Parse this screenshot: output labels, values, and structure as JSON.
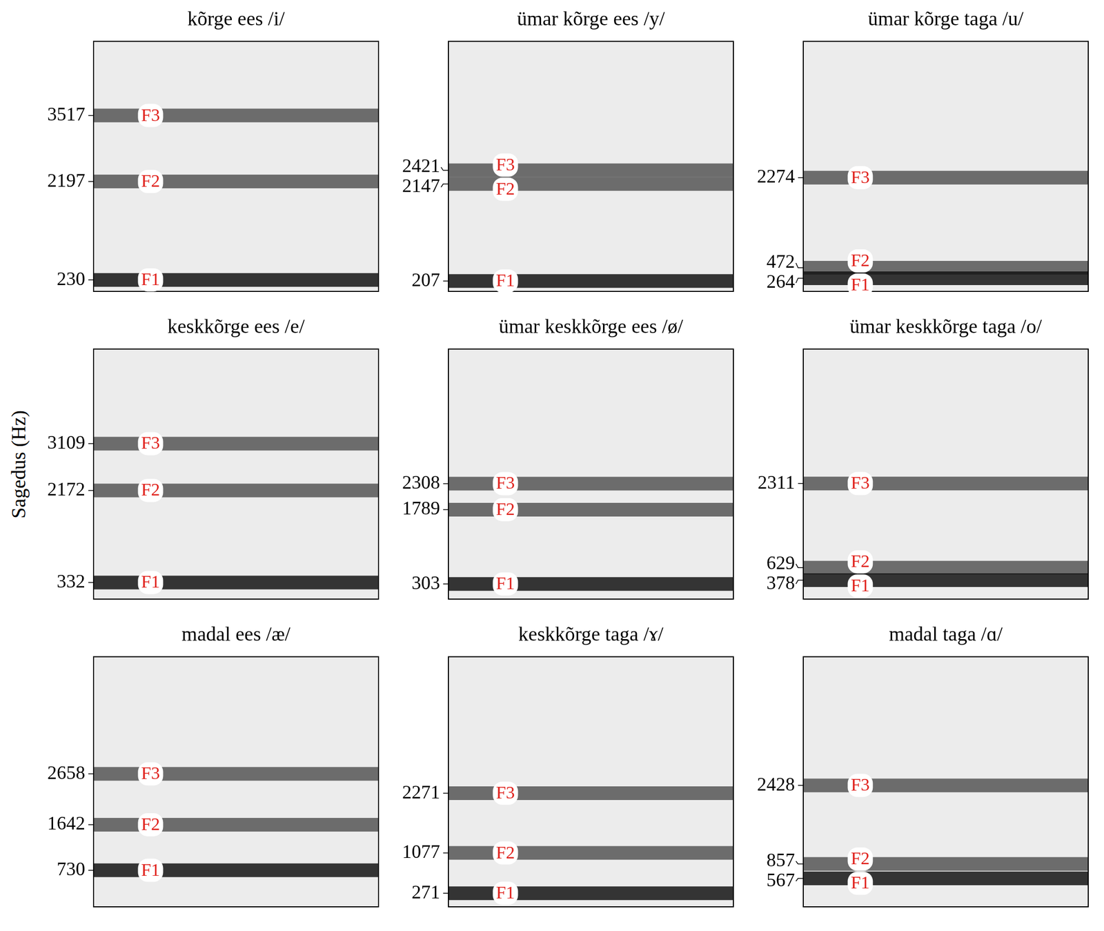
{
  "chart_data": [
    {
      "type": "line",
      "title": "kõrge ees /i/",
      "xlim": [
        0,
        1
      ],
      "ylim": [
        0,
        5000
      ],
      "yticks": [
        230,
        2197,
        3517
      ],
      "tick_labels": "y",
      "color": "#e0201b",
      "formants": [
        {
          "label": "F1",
          "value": 230,
          "x": 0.2
        },
        {
          "label": "F2",
          "value": 2197,
          "x": 0.2
        },
        {
          "label": "F3",
          "value": 3517,
          "x": 0.2
        }
      ]
    },
    {
      "type": "line",
      "title": "ümar kõrge ees /y/",
      "xlim": [
        0,
        1
      ],
      "ylim": [
        0,
        5000
      ],
      "yticks": [
        207,
        2147,
        2421
      ],
      "tick_labels": "y",
      "color": "#e0201b",
      "formants": [
        {
          "label": "F1",
          "value": 207,
          "x": 0.2
        },
        {
          "label": "F2",
          "value": 2147,
          "x": 0.2
        },
        {
          "label": "F3",
          "value": 2421,
          "x": 0.2
        }
      ]
    },
    {
      "type": "line",
      "title": "ümar kõrge taga /u/",
      "xlim": [
        0,
        1
      ],
      "ylim": [
        0,
        5000
      ],
      "yticks": [
        264,
        472,
        2274
      ],
      "tick_labels": "y",
      "color": "#e0201b",
      "formants": [
        {
          "label": "F1",
          "value": 264,
          "x": 0.2
        },
        {
          "label": "F2",
          "value": 472,
          "x": 0.2
        },
        {
          "label": "F3",
          "value": 2274,
          "x": 0.2
        }
      ]
    },
    {
      "type": "line",
      "title": "keskkõrge ees /e/",
      "xlim": [
        0,
        1
      ],
      "ylim": [
        0,
        5000
      ],
      "yticks": [
        332,
        2172,
        3109
      ],
      "tick_labels": "y",
      "color": "#e0201b",
      "ylabel": "Sagedus (Hz)",
      "formants": [
        {
          "label": "F1",
          "value": 332,
          "x": 0.2
        },
        {
          "label": "F2",
          "value": 2172,
          "x": 0.2
        },
        {
          "label": "F3",
          "value": 3109,
          "x": 0.2
        }
      ]
    },
    {
      "type": "line",
      "title": "ümar keskkõrge ees /ø/",
      "xlim": [
        0,
        1
      ],
      "ylim": [
        0,
        5000
      ],
      "yticks": [
        303,
        1789,
        2308
      ],
      "tick_labels": "y",
      "color": "#e0201b",
      "formants": [
        {
          "label": "F1",
          "value": 303,
          "x": 0.2
        },
        {
          "label": "F2",
          "value": 1789,
          "x": 0.2
        },
        {
          "label": "F3",
          "value": 2308,
          "x": 0.2
        }
      ]
    },
    {
      "type": "line",
      "title": "ümar keskkõrge taga /o/",
      "xlim": [
        0,
        1
      ],
      "ylim": [
        0,
        5000
      ],
      "yticks": [
        378,
        629,
        2311
      ],
      "tick_labels": "y",
      "color": "#e0201b",
      "formants": [
        {
          "label": "F1",
          "value": 378,
          "x": 0.2
        },
        {
          "label": "F2",
          "value": 629,
          "x": 0.2
        },
        {
          "label": "F3",
          "value": 2311,
          "x": 0.2
        }
      ]
    },
    {
      "type": "line",
      "title": "madal ees /æ/",
      "xlim": [
        0,
        1
      ],
      "ylim": [
        0,
        5000
      ],
      "yticks": [
        730,
        1642,
        2658
      ],
      "tick_labels": "y",
      "color": "#e0201b",
      "formants": [
        {
          "label": "F1",
          "value": 730,
          "x": 0.2
        },
        {
          "label": "F2",
          "value": 1642,
          "x": 0.2
        },
        {
          "label": "F3",
          "value": 2658,
          "x": 0.2
        }
      ]
    },
    {
      "type": "line",
      "title": "keskkõrge taga /ɤ/",
      "xlim": [
        0,
        1
      ],
      "ylim": [
        0,
        5000
      ],
      "yticks": [
        271,
        1077,
        2271
      ],
      "tick_labels": "y",
      "color": "#e0201b",
      "formants": [
        {
          "label": "F1",
          "value": 271,
          "x": 0.2
        },
        {
          "label": "F2",
          "value": 1077,
          "x": 0.2
        },
        {
          "label": "F3",
          "value": 2271,
          "x": 0.2
        }
      ]
    },
    {
      "type": "line",
      "title": "madal taga /ɑ/",
      "xlim": [
        0,
        1
      ],
      "ylim": [
        0,
        5000
      ],
      "yticks": [
        567,
        857,
        2428
      ],
      "tick_labels": "y",
      "color": "#e0201b",
      "formants": [
        {
          "label": "F1",
          "value": 567,
          "x": 0.2
        },
        {
          "label": "F2",
          "value": 857,
          "x": 0.2
        },
        {
          "label": "F3",
          "value": 2428,
          "x": 0.2
        }
      ]
    }
  ]
}
